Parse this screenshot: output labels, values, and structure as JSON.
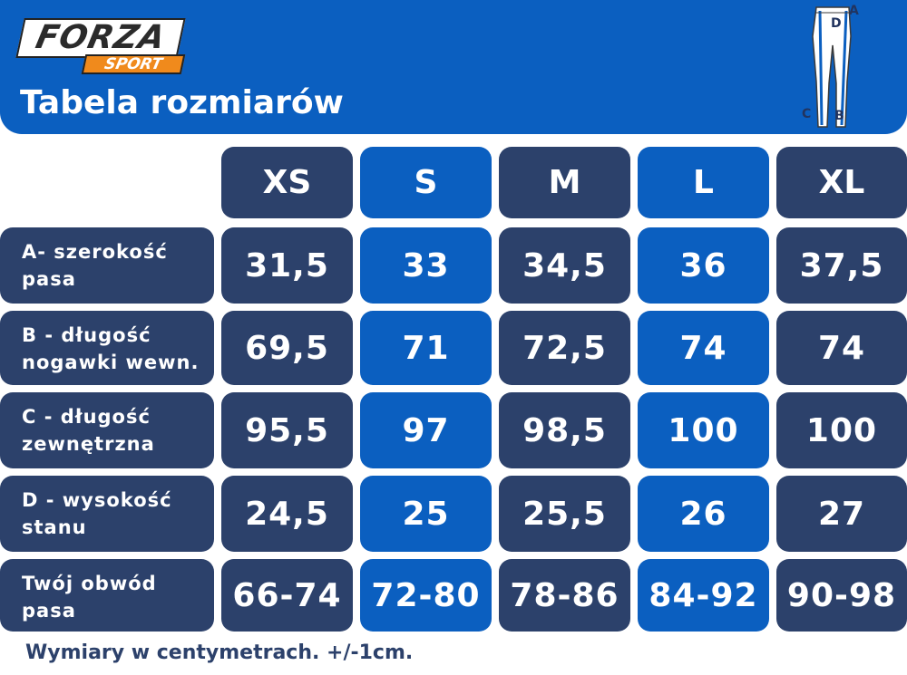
{
  "brand": {
    "name": "FORZA",
    "sub": "SPORT"
  },
  "title": "Tabela rozmiarów",
  "diagram": {
    "letters": [
      "A",
      "D",
      "C",
      "B"
    ]
  },
  "sizes": [
    "XS",
    "S",
    "M",
    "L",
    "XL"
  ],
  "rows": [
    {
      "label_line1": "A- szerokość",
      "label_line2": "pasa",
      "values": [
        "31,5",
        "33",
        "34,5",
        "36",
        "37,5"
      ]
    },
    {
      "label_line1": "B - długość",
      "label_line2": "nogawki wewn.",
      "values": [
        "69,5",
        "71",
        "72,5",
        "74",
        "74"
      ]
    },
    {
      "label_line1": "C - długość",
      "label_line2": "zewnętrzna",
      "values": [
        "95,5",
        "97",
        "98,5",
        "100",
        "100"
      ]
    },
    {
      "label_line1": "D - wysokość",
      "label_line2": "stanu",
      "values": [
        "24,5",
        "25",
        "25,5",
        "26",
        "27"
      ]
    },
    {
      "label_line1": "Twój obwód",
      "label_line2": "pasa",
      "values": [
        "66-74",
        "72-80",
        "78-86",
        "84-92",
        "90-98"
      ]
    }
  ],
  "footer": "Wymiary w centymetrach. +/-1cm.",
  "colors": {
    "dark": "#2c416b",
    "blue": "#0b5fc0",
    "logo_orange": "#f08a1c"
  }
}
